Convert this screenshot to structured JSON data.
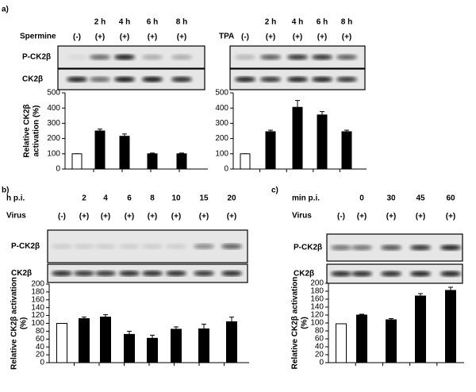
{
  "chart_data": [
    {
      "type": "bar",
      "panel_label": "a)",
      "time_label": null,
      "treatment_label": "Spermine",
      "times": [
        null,
        "2 h",
        "4 h",
        "6 h",
        "8 h"
      ],
      "categories": [
        "(-)",
        "(+)",
        "(+)",
        "(+)",
        "(+)"
      ],
      "blot_labels": [
        "P-CK2β",
        "CK2β"
      ],
      "ylabel": [
        "Relative CK2β",
        "activation (%)"
      ],
      "values": [
        100,
        250,
        215,
        100,
        100
      ],
      "errors": [
        0,
        12,
        15,
        5,
        5
      ],
      "colors": [
        "#ffffff",
        "#000000",
        "#000000",
        "#000000",
        "#000000"
      ],
      "ylim": [
        0,
        500
      ],
      "yticks": [
        0,
        100,
        200,
        300,
        400,
        500
      ]
    },
    {
      "type": "bar",
      "panel_label": null,
      "time_label": null,
      "treatment_label": "TPA",
      "times": [
        null,
        "2 h",
        "4 h",
        "6 h",
        "8 h"
      ],
      "categories": [
        "(-)",
        "(+)",
        "(+)",
        "(+)",
        "(+)"
      ],
      "blot_labels": [],
      "ylabel": [],
      "values": [
        100,
        245,
        405,
        355,
        245
      ],
      "errors": [
        0,
        10,
        45,
        22,
        10
      ],
      "colors": [
        "#ffffff",
        "#000000",
        "#000000",
        "#000000",
        "#000000"
      ],
      "ylim": [
        0,
        500
      ],
      "yticks": [
        0,
        100,
        200,
        300,
        400,
        500
      ]
    },
    {
      "type": "bar",
      "panel_label": "b)",
      "time_label": "h p.i.",
      "treatment_label": "Virus",
      "times": [
        null,
        "2",
        "4",
        "6",
        "8",
        "10",
        "15",
        "20"
      ],
      "categories": [
        "(-)",
        "(+)",
        "(+)",
        "(+)",
        "(+)",
        "(+)",
        "(+)",
        "(+)"
      ],
      "blot_labels": [
        "P-CK2β",
        "CK2β"
      ],
      "ylabel": [
        "Relative CK2β activation",
        "(%)"
      ],
      "values": [
        100,
        112,
        116,
        72,
        62,
        85,
        86,
        104
      ],
      "errors": [
        0,
        4,
        6,
        8,
        8,
        6,
        12,
        12
      ],
      "colors": [
        "#ffffff",
        "#000000",
        "#000000",
        "#000000",
        "#000000",
        "#000000",
        "#000000",
        "#000000"
      ],
      "ylim": [
        0,
        200
      ],
      "yticks": [
        0,
        20,
        40,
        60,
        80,
        100,
        120,
        140,
        160,
        180,
        200
      ]
    },
    {
      "type": "bar",
      "panel_label": "c)",
      "time_label": "min p.i.",
      "treatment_label": "Virus",
      "times": [
        null,
        "0",
        "30",
        "45",
        "60"
      ],
      "categories": [
        "(-)",
        "(+)",
        "(+)",
        "(+)",
        "(+)"
      ],
      "blot_labels": [
        "P-CK2β",
        "CK2β"
      ],
      "ylabel": [
        "Relative CK2β activation",
        "(%)"
      ],
      "values": [
        98,
        120,
        108,
        168,
        182
      ],
      "errors": [
        0,
        2,
        3,
        6,
        8
      ],
      "colors": [
        "#ffffff",
        "#000000",
        "#000000",
        "#000000",
        "#000000"
      ],
      "ylim": [
        0,
        200
      ],
      "yticks": [
        0,
        20,
        40,
        60,
        80,
        100,
        120,
        140,
        160,
        180,
        200
      ]
    }
  ]
}
